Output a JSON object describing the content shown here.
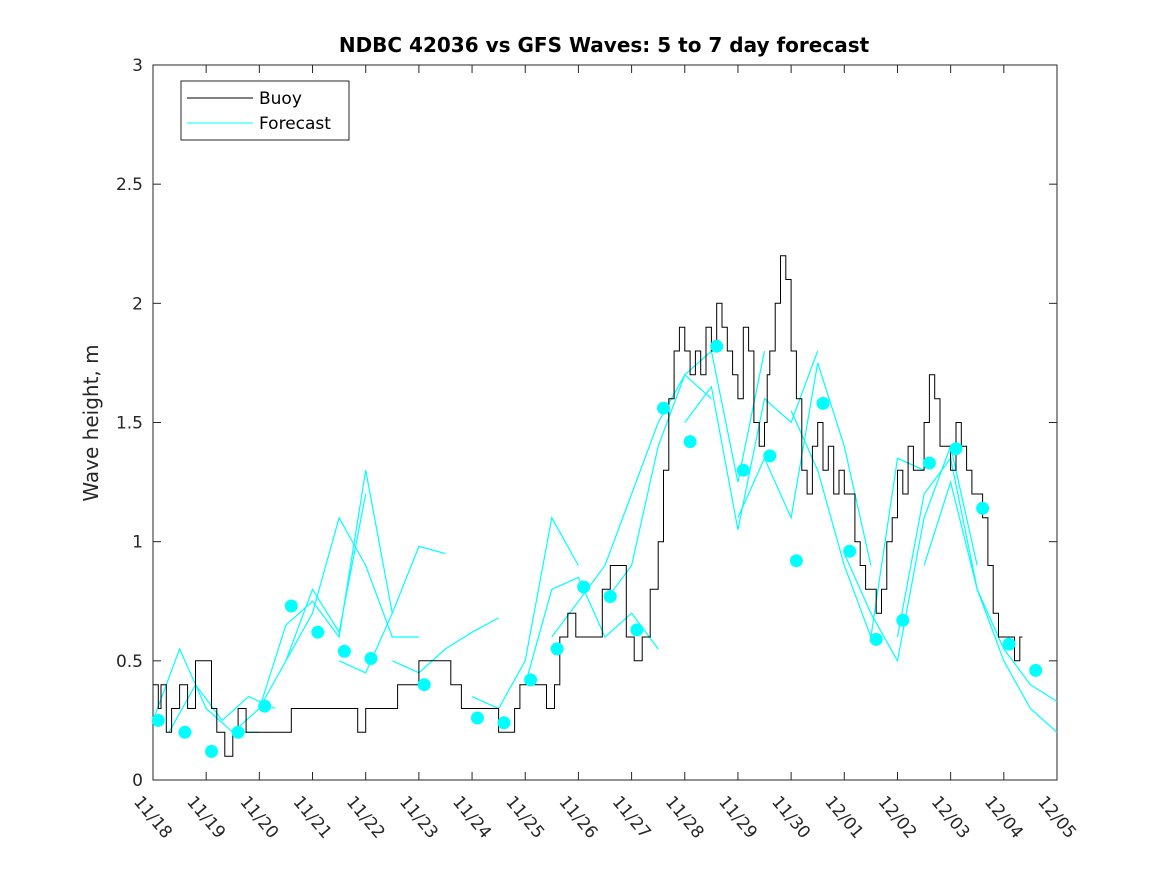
{
  "chart_data": {
    "type": "line",
    "title": "NDBC 42036 vs GFS Waves: 5 to 7 day forecast",
    "xlabel": "",
    "ylabel": "Wave height, m",
    "xlim": [
      0,
      17
    ],
    "ylim": [
      0,
      3
    ],
    "yticks": [
      "0",
      "0.5",
      "1",
      "1.5",
      "2",
      "2.5",
      "3"
    ],
    "xtick_labels": [
      "11/18",
      "11/19",
      "11/20",
      "11/21",
      "11/22",
      "11/23",
      "11/24",
      "11/25",
      "11/26",
      "11/27",
      "11/28",
      "11/29",
      "11/30",
      "12/01",
      "12/02",
      "12/03",
      "12/04",
      "12/05"
    ],
    "legend": {
      "position": "top-left",
      "entries": [
        "Buoy",
        "Forecast"
      ]
    },
    "colors": {
      "buoy": "#000000",
      "forecast": "#00ffff",
      "axes": "#262626"
    },
    "buoy": {
      "x": [
        0.0,
        0.1,
        0.15,
        0.25,
        0.35,
        0.5,
        0.65,
        0.8,
        0.95,
        1.1,
        1.2,
        1.25,
        1.35,
        1.5,
        1.6,
        1.75,
        1.85,
        1.95,
        2.1,
        2.3,
        2.6,
        2.9,
        3.2,
        3.5,
        3.7,
        3.85,
        4.0,
        4.2,
        4.35,
        4.6,
        4.8,
        5.0,
        5.15,
        5.4,
        5.6,
        5.8,
        6.0,
        6.2,
        6.5,
        6.8,
        6.9,
        7.0,
        7.1,
        7.2,
        7.4,
        7.55,
        7.65,
        7.8,
        7.95,
        8.1,
        8.3,
        8.45,
        8.6,
        8.75,
        8.9,
        9.05,
        9.2,
        9.35,
        9.5,
        9.6,
        9.7,
        9.8,
        9.9,
        10.0,
        10.1,
        10.2,
        10.3,
        10.4,
        10.5,
        10.6,
        10.7,
        10.8,
        10.9,
        11.0,
        11.1,
        11.2,
        11.3,
        11.4,
        11.5,
        11.55,
        11.6,
        11.7,
        11.8,
        11.9,
        12.0,
        12.1,
        12.2,
        12.3,
        12.4,
        12.5,
        12.6,
        12.7,
        12.8,
        12.9,
        13.0,
        13.1,
        13.2,
        13.3,
        13.4,
        13.5,
        13.6,
        13.7,
        13.8,
        13.9,
        14.0,
        14.1,
        14.2,
        14.3,
        14.4,
        14.5,
        14.6,
        14.7,
        14.8,
        14.9,
        15.0,
        15.1,
        15.2,
        15.3,
        15.4,
        15.5,
        15.6,
        15.7,
        15.8,
        15.9,
        16.0,
        16.1,
        16.2,
        16.3
      ],
      "values": [
        0.4,
        0.3,
        0.4,
        0.2,
        0.3,
        0.4,
        0.3,
        0.5,
        0.5,
        0.3,
        0.2,
        0.2,
        0.1,
        0.2,
        0.3,
        0.2,
        0.2,
        0.2,
        0.2,
        0.2,
        0.3,
        0.3,
        0.3,
        0.3,
        0.3,
        0.2,
        0.3,
        0.3,
        0.3,
        0.4,
        0.4,
        0.5,
        0.5,
        0.5,
        0.4,
        0.3,
        0.3,
        0.3,
        0.2,
        0.3,
        0.4,
        0.4,
        0.4,
        0.4,
        0.3,
        0.4,
        0.6,
        0.7,
        0.6,
        0.6,
        0.6,
        0.8,
        0.9,
        0.9,
        0.6,
        0.5,
        0.6,
        0.8,
        1.0,
        1.3,
        1.6,
        1.8,
        1.9,
        1.8,
        1.7,
        1.8,
        1.7,
        1.9,
        1.8,
        2.0,
        1.9,
        1.8,
        1.7,
        1.6,
        1.9,
        1.8,
        1.5,
        1.4,
        1.5,
        1.7,
        1.8,
        2.0,
        2.2,
        2.1,
        1.8,
        1.6,
        1.3,
        1.2,
        1.4,
        1.5,
        1.3,
        1.4,
        1.2,
        1.3,
        1.2,
        1.2,
        1.0,
        0.9,
        0.8,
        0.8,
        0.7,
        0.8,
        1.0,
        1.1,
        1.3,
        1.2,
        1.4,
        1.3,
        1.3,
        1.5,
        1.7,
        1.6,
        1.4,
        1.4,
        1.3,
        1.5,
        1.4,
        1.3,
        1.2,
        1.2,
        1.1,
        0.9,
        0.7,
        0.6,
        0.6,
        0.6,
        0.5,
        0.6
      ]
    },
    "forecast_series": [
      {
        "x": [
          0.0,
          0.5,
          1.0,
          1.5,
          2.0
        ],
        "values": [
          0.25,
          0.55,
          0.3,
          0.2,
          0.2
        ]
      },
      {
        "x": [
          0.3,
          0.8,
          1.3,
          1.8,
          2.3
        ],
        "values": [
          0.2,
          0.4,
          0.25,
          0.35,
          0.3
        ]
      },
      {
        "x": [
          1.5,
          2.0,
          2.5,
          3.0,
          3.5,
          4.0
        ],
        "values": [
          0.2,
          0.3,
          0.5,
          0.8,
          0.62,
          1.2
        ]
      },
      {
        "x": [
          2.0,
          2.5,
          3.0,
          3.5,
          4.0,
          4.5
        ],
        "values": [
          0.3,
          0.65,
          0.75,
          0.6,
          1.3,
          0.7
        ]
      },
      {
        "x": [
          2.5,
          3.0,
          3.5,
          4.0,
          4.5,
          5.0
        ],
        "values": [
          0.5,
          0.7,
          1.1,
          0.9,
          0.6,
          0.6
        ]
      },
      {
        "x": [
          3.5,
          4.0,
          4.5,
          5.0,
          5.5
        ],
        "values": [
          0.5,
          0.45,
          0.7,
          0.98,
          0.95
        ]
      },
      {
        "x": [
          4.5,
          5.0,
          5.5,
          6.0,
          6.5
        ],
        "values": [
          0.5,
          0.45,
          0.55,
          0.62,
          0.68
        ]
      },
      {
        "x": [
          6.0,
          6.5,
          7.0,
          7.5,
          8.0
        ],
        "values": [
          0.35,
          0.3,
          0.5,
          1.1,
          0.9
        ]
      },
      {
        "x": [
          7.0,
          7.5,
          8.0,
          8.5,
          9.0,
          9.5
        ],
        "values": [
          0.4,
          0.8,
          0.85,
          0.6,
          0.7,
          0.55
        ]
      },
      {
        "x": [
          7.5,
          8.0,
          8.5,
          9.0,
          9.5,
          10.0,
          10.5
        ],
        "values": [
          0.6,
          0.75,
          0.9,
          1.2,
          1.5,
          1.7,
          1.6
        ]
      },
      {
        "x": [
          8.5,
          9.0,
          9.5,
          10.0,
          10.5,
          11.0,
          11.5
        ],
        "values": [
          0.75,
          0.9,
          1.4,
          1.7,
          1.8,
          1.25,
          1.8
        ]
      },
      {
        "x": [
          10.0,
          10.5,
          11.0,
          11.5,
          12.0,
          12.5
        ],
        "values": [
          1.5,
          1.65,
          1.05,
          1.6,
          1.5,
          1.8
        ]
      },
      {
        "x": [
          11.0,
          11.5,
          12.0,
          12.5,
          13.0,
          13.5
        ],
        "values": [
          1.1,
          1.35,
          1.1,
          1.75,
          1.4,
          0.9
        ]
      },
      {
        "x": [
          12.0,
          12.5,
          13.0,
          13.5,
          14.0,
          14.5
        ],
        "values": [
          1.55,
          1.3,
          0.9,
          0.6,
          1.35,
          1.3
        ]
      },
      {
        "x": [
          13.0,
          13.5,
          14.0,
          14.5,
          15.0,
          15.5
        ],
        "values": [
          0.95,
          0.7,
          0.5,
          1.1,
          1.4,
          0.9
        ]
      },
      {
        "x": [
          14.0,
          14.5,
          15.0,
          15.5,
          16.0,
          16.5,
          17.0
        ],
        "values": [
          0.6,
          1.2,
          1.35,
          0.8,
          0.5,
          0.3,
          0.2
        ]
      },
      {
        "x": [
          14.5,
          15.0,
          15.5,
          16.0,
          16.5,
          17.0
        ],
        "values": [
          0.9,
          1.25,
          0.8,
          0.55,
          0.4,
          0.33
        ]
      }
    ],
    "forecast_points": {
      "x": [
        0.1,
        0.6,
        1.1,
        1.6,
        2.1,
        2.6,
        3.1,
        3.6,
        4.1,
        5.1,
        6.1,
        6.6,
        7.1,
        7.6,
        8.1,
        8.6,
        9.1,
        9.6,
        10.1,
        10.6,
        11.1,
        11.6,
        12.1,
        12.6,
        13.1,
        13.6,
        14.1,
        14.6,
        15.1,
        15.6,
        16.1,
        16.6
      ],
      "values": [
        0.25,
        0.2,
        0.12,
        0.2,
        0.31,
        0.73,
        0.62,
        0.54,
        0.51,
        0.4,
        0.26,
        0.24,
        0.42,
        0.55,
        0.81,
        0.77,
        0.63,
        1.56,
        1.42,
        1.82,
        1.3,
        1.36,
        0.92,
        1.58,
        0.96,
        0.59,
        0.67,
        1.33,
        1.39,
        1.14,
        0.57,
        0.46
      ]
    }
  }
}
